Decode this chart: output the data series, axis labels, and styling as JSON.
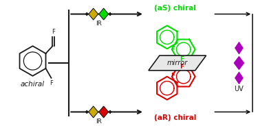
{
  "bg_color": "#ffffff",
  "box_color": "#1a1a1a",
  "green_color": "#00dd00",
  "red_color": "#dd0000",
  "purple_color": "#aa00bb",
  "yellow_color": "#ccaa00",
  "black_color": "#111111",
  "mirror_text": "mirror",
  "achiral_label": "achiral",
  "aS_label": "(aS) chiral",
  "aR_label": "(aR) chiral",
  "IR_label": "IR",
  "UV_label": "UV",
  "figw": 3.75,
  "figh": 1.84,
  "dpi": 100
}
